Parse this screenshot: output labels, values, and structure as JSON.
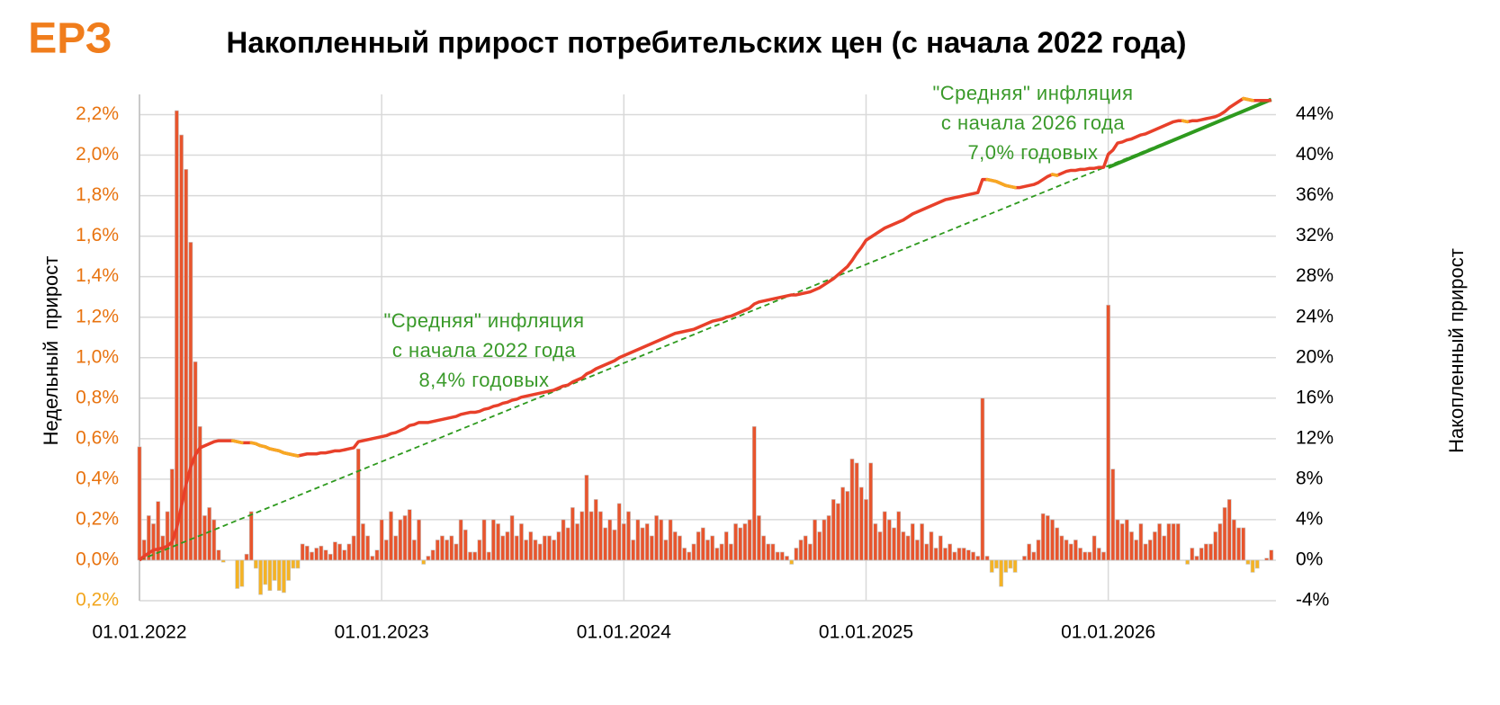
{
  "chart_data": {
    "type": "combo",
    "logo": "ЕРЗ",
    "title": "Накопленный прирост потребительских цен (с начала 2022 года)",
    "y_label": "Недельный  прирост",
    "y2_label": "Накопленный прирост",
    "grid": true,
    "xlim": [
      0,
      244
    ],
    "xticks": [
      {
        "value": 0,
        "label": "01.01.2022"
      },
      {
        "value": 52,
        "label": "01.01.2023"
      },
      {
        "value": 104,
        "label": "01.01.2024"
      },
      {
        "value": 156,
        "label": "01.01.2025"
      },
      {
        "value": 208,
        "label": "01.01.2026"
      }
    ],
    "ylim": [
      -0.2,
      2.3
    ],
    "yticks": [
      {
        "value": -0.2,
        "label": "0,2%"
      },
      {
        "value": 0,
        "label": "0,0%"
      },
      {
        "value": 0.2,
        "label": "0,2%"
      },
      {
        "value": 0.4,
        "label": "0,4%"
      },
      {
        "value": 0.6,
        "label": "0,6%"
      },
      {
        "value": 0.8,
        "label": "0,8%"
      },
      {
        "value": 1.0,
        "label": "1,0%"
      },
      {
        "value": 1.2,
        "label": "1,2%"
      },
      {
        "value": 1.4,
        "label": "1,4%"
      },
      {
        "value": 1.6,
        "label": "1,6%"
      },
      {
        "value": 1.8,
        "label": "1,8%"
      },
      {
        "value": 2.0,
        "label": "2,0%"
      },
      {
        "value": 2.2,
        "label": "2,2%"
      }
    ],
    "ytick_color": "#e8730f",
    "ytick_negative_color": "#f2a51c",
    "y2lim": [
      -4,
      46
    ],
    "y2ticks": [
      {
        "value": -4,
        "label": "-4%"
      },
      {
        "value": 0,
        "label": "0%"
      },
      {
        "value": 4,
        "label": "4%"
      },
      {
        "value": 8,
        "label": "8%"
      },
      {
        "value": 12,
        "label": "12%"
      },
      {
        "value": 16,
        "label": "16%"
      },
      {
        "value": 20,
        "label": "20%"
      },
      {
        "value": 24,
        "label": "24%"
      },
      {
        "value": 28,
        "label": "28%"
      },
      {
        "value": 32,
        "label": "32%"
      },
      {
        "value": 36,
        "label": "36%"
      },
      {
        "value": 40,
        "label": "40%"
      },
      {
        "value": 44,
        "label": "44%"
      }
    ],
    "series": [
      {
        "type": "bar",
        "color": "#e8552d",
        "negative_color": "#f5b324",
        "values": [
          0.56,
          0.1,
          0.22,
          0.18,
          0.29,
          0.12,
          0.24,
          0.45,
          2.22,
          2.1,
          1.93,
          1.57,
          0.98,
          0.66,
          0.22,
          0.26,
          0.2,
          0.05,
          -0.01,
          0,
          0,
          -0.14,
          -0.13,
          0.03,
          0.24,
          -0.04,
          -0.17,
          -0.12,
          -0.15,
          -0.1,
          -0.15,
          -0.16,
          -0.1,
          -0.04,
          -0.04,
          0.08,
          0.07,
          0.04,
          0.06,
          0.07,
          0.05,
          0.03,
          0.09,
          0.08,
          0.05,
          0.08,
          0.12,
          0.55,
          0.18,
          0.12,
          0.02,
          0.05,
          0.2,
          0.1,
          0.24,
          0.12,
          0.2,
          0.22,
          0.25,
          0.1,
          0.2,
          -0.02,
          0.02,
          0.05,
          0.1,
          0.12,
          0.1,
          0.12,
          0.08,
          0.2,
          0.15,
          0.04,
          0.04,
          0.1,
          0.2,
          0.04,
          0.2,
          0.18,
          0.12,
          0.14,
          0.22,
          0.12,
          0.18,
          0.1,
          0.14,
          0.1,
          0.08,
          0.12,
          0.12,
          0.1,
          0.14,
          0.2,
          0.16,
          0.26,
          0.18,
          0.24,
          0.42,
          0.24,
          0.3,
          0.24,
          0.16,
          0.2,
          0.15,
          0.28,
          0.18,
          0.24,
          0.1,
          0.2,
          0.16,
          0.18,
          0.12,
          0.22,
          0.2,
          0.1,
          0.2,
          0.14,
          0.12,
          0.06,
          0.04,
          0.08,
          0.14,
          0.16,
          0.1,
          0.12,
          0.06,
          0.08,
          0.14,
          0.08,
          0.18,
          0.16,
          0.18,
          0.2,
          0.66,
          0.22,
          0.12,
          0.08,
          0.08,
          0.04,
          0.04,
          0.02,
          -0.02,
          0.06,
          0.1,
          0.12,
          0.08,
          0.2,
          0.14,
          0.2,
          0.22,
          0.3,
          0.28,
          0.36,
          0.34,
          0.5,
          0.48,
          0.36,
          0.3,
          0.48,
          0.18,
          0.14,
          0.24,
          0.2,
          0.16,
          0.24,
          0.14,
          0.12,
          0.18,
          0.1,
          0.18,
          0.08,
          0.14,
          0.06,
          0.12,
          0.06,
          0.08,
          0.04,
          0.06,
          0.06,
          0.05,
          0.04,
          0.02,
          0.8,
          0.02,
          -0.06,
          -0.04,
          -0.13,
          -0.06,
          -0.04,
          -0.06,
          0,
          0.02,
          0.08,
          0.04,
          0.1,
          0.23,
          0.22,
          0.2,
          0.16,
          0.12,
          0.1,
          0.08,
          0.1,
          0.06,
          0.04,
          0.04,
          0.12,
          0.06,
          0.04,
          1.26,
          0.45,
          0.2,
          0.18,
          0.2,
          0.14,
          0.1,
          0.18,
          0.08,
          0.1,
          0.14,
          0.18,
          0.12,
          0.18,
          0.18,
          0.18,
          0,
          -0.02,
          0.06,
          0.02,
          0.06,
          0.08,
          0.08,
          0.14,
          0.18,
          0.26,
          0.3,
          0.2,
          0.16,
          0.16,
          -0.02,
          -0.06,
          -0.04,
          0,
          0.01,
          0.05
        ]
      },
      {
        "type": "line",
        "axis": "y2",
        "color": "#e8402a",
        "down_color": "#f7a823",
        "values": [
          0,
          0.4,
          0.7,
          1.0,
          1.1,
          1.2,
          1.4,
          1.8,
          3.2,
          5.3,
          7.5,
          9.2,
          10.4,
          11.1,
          11.3,
          11.5,
          11.7,
          11.8,
          11.8,
          11.8,
          11.8,
          11.7,
          11.6,
          11.6,
          11.6,
          11.5,
          11.3,
          11.2,
          11.0,
          10.9,
          10.8,
          10.6,
          10.5,
          10.4,
          10.3,
          10.4,
          10.5,
          10.5,
          10.5,
          10.6,
          10.6,
          10.7,
          10.8,
          10.8,
          10.9,
          11.0,
          11.1,
          11.7,
          11.8,
          11.9,
          12.0,
          12.1,
          12.2,
          12.3,
          12.5,
          12.6,
          12.8,
          13.0,
          13.3,
          13.4,
          13.6,
          13.6,
          13.6,
          13.7,
          13.8,
          13.9,
          14.0,
          14.1,
          14.2,
          14.4,
          14.5,
          14.6,
          14.6,
          14.7,
          14.9,
          15.0,
          15.2,
          15.3,
          15.5,
          15.6,
          15.8,
          15.9,
          16.1,
          16.2,
          16.3,
          16.4,
          16.5,
          16.6,
          16.7,
          16.8,
          17.0,
          17.2,
          17.3,
          17.6,
          17.8,
          18.0,
          18.4,
          18.6,
          18.9,
          19.1,
          19.3,
          19.5,
          19.7,
          20.0,
          20.2,
          20.4,
          20.6,
          20.8,
          21.0,
          21.2,
          21.4,
          21.6,
          21.8,
          22.0,
          22.2,
          22.4,
          22.5,
          22.6,
          22.7,
          22.8,
          23.0,
          23.2,
          23.4,
          23.6,
          23.7,
          23.8,
          24.0,
          24.1,
          24.3,
          24.5,
          24.7,
          24.9,
          25.3,
          25.5,
          25.6,
          25.7,
          25.8,
          25.9,
          26.0,
          26.1,
          26.2,
          26.2,
          26.3,
          26.4,
          26.5,
          26.7,
          26.9,
          27.2,
          27.5,
          27.8,
          28.2,
          28.6,
          29.0,
          29.6,
          30.3,
          30.9,
          31.6,
          31.9,
          32.2,
          32.5,
          32.8,
          33.0,
          33.2,
          33.4,
          33.6,
          33.9,
          34.2,
          34.4,
          34.6,
          34.8,
          35.0,
          35.2,
          35.4,
          35.6,
          35.7,
          35.8,
          35.9,
          36.0,
          36.1,
          36.2,
          36.3,
          37.6,
          37.6,
          37.5,
          37.4,
          37.2,
          37.0,
          36.9,
          36.8,
          36.8,
          36.9,
          37.0,
          37.1,
          37.3,
          37.6,
          37.9,
          38.1,
          38.0,
          38.2,
          38.4,
          38.5,
          38.5,
          38.6,
          38.6,
          38.7,
          38.7,
          38.8,
          38.8,
          40.1,
          40.5,
          41.2,
          41.3,
          41.5,
          41.6,
          41.8,
          42.0,
          42.1,
          42.3,
          42.5,
          42.7,
          42.9,
          43.1,
          43.3,
          43.4,
          43.4,
          43.3,
          43.4,
          43.4,
          43.5,
          43.6,
          43.7,
          43.8,
          44.0,
          44.3,
          44.7,
          45.0,
          45.3,
          45.6,
          45.5,
          45.4,
          45.4,
          45.4,
          45.4,
          45.4
        ]
      }
    ],
    "trends": [
      {
        "color": "#2e9a1e",
        "dashed": true,
        "x": [
          0,
          243
        ],
        "values": [
          0,
          45.5
        ]
      },
      {
        "color": "#2e9a1e",
        "dashed": false,
        "x": [
          208,
          243
        ],
        "values": [
          38.8,
          45.5
        ]
      }
    ],
    "annotations": [
      {
        "color": "#3a9a2a",
        "lines": [
          "\"Средняя\" инфляция",
          "с начала 2022 года",
          "8,4% годовых"
        ]
      },
      {
        "color": "#3a9a2a",
        "lines": [
          "\"Средняя\" инфляция",
          "с начала 2026 года",
          "7,0% годовых"
        ]
      }
    ]
  }
}
